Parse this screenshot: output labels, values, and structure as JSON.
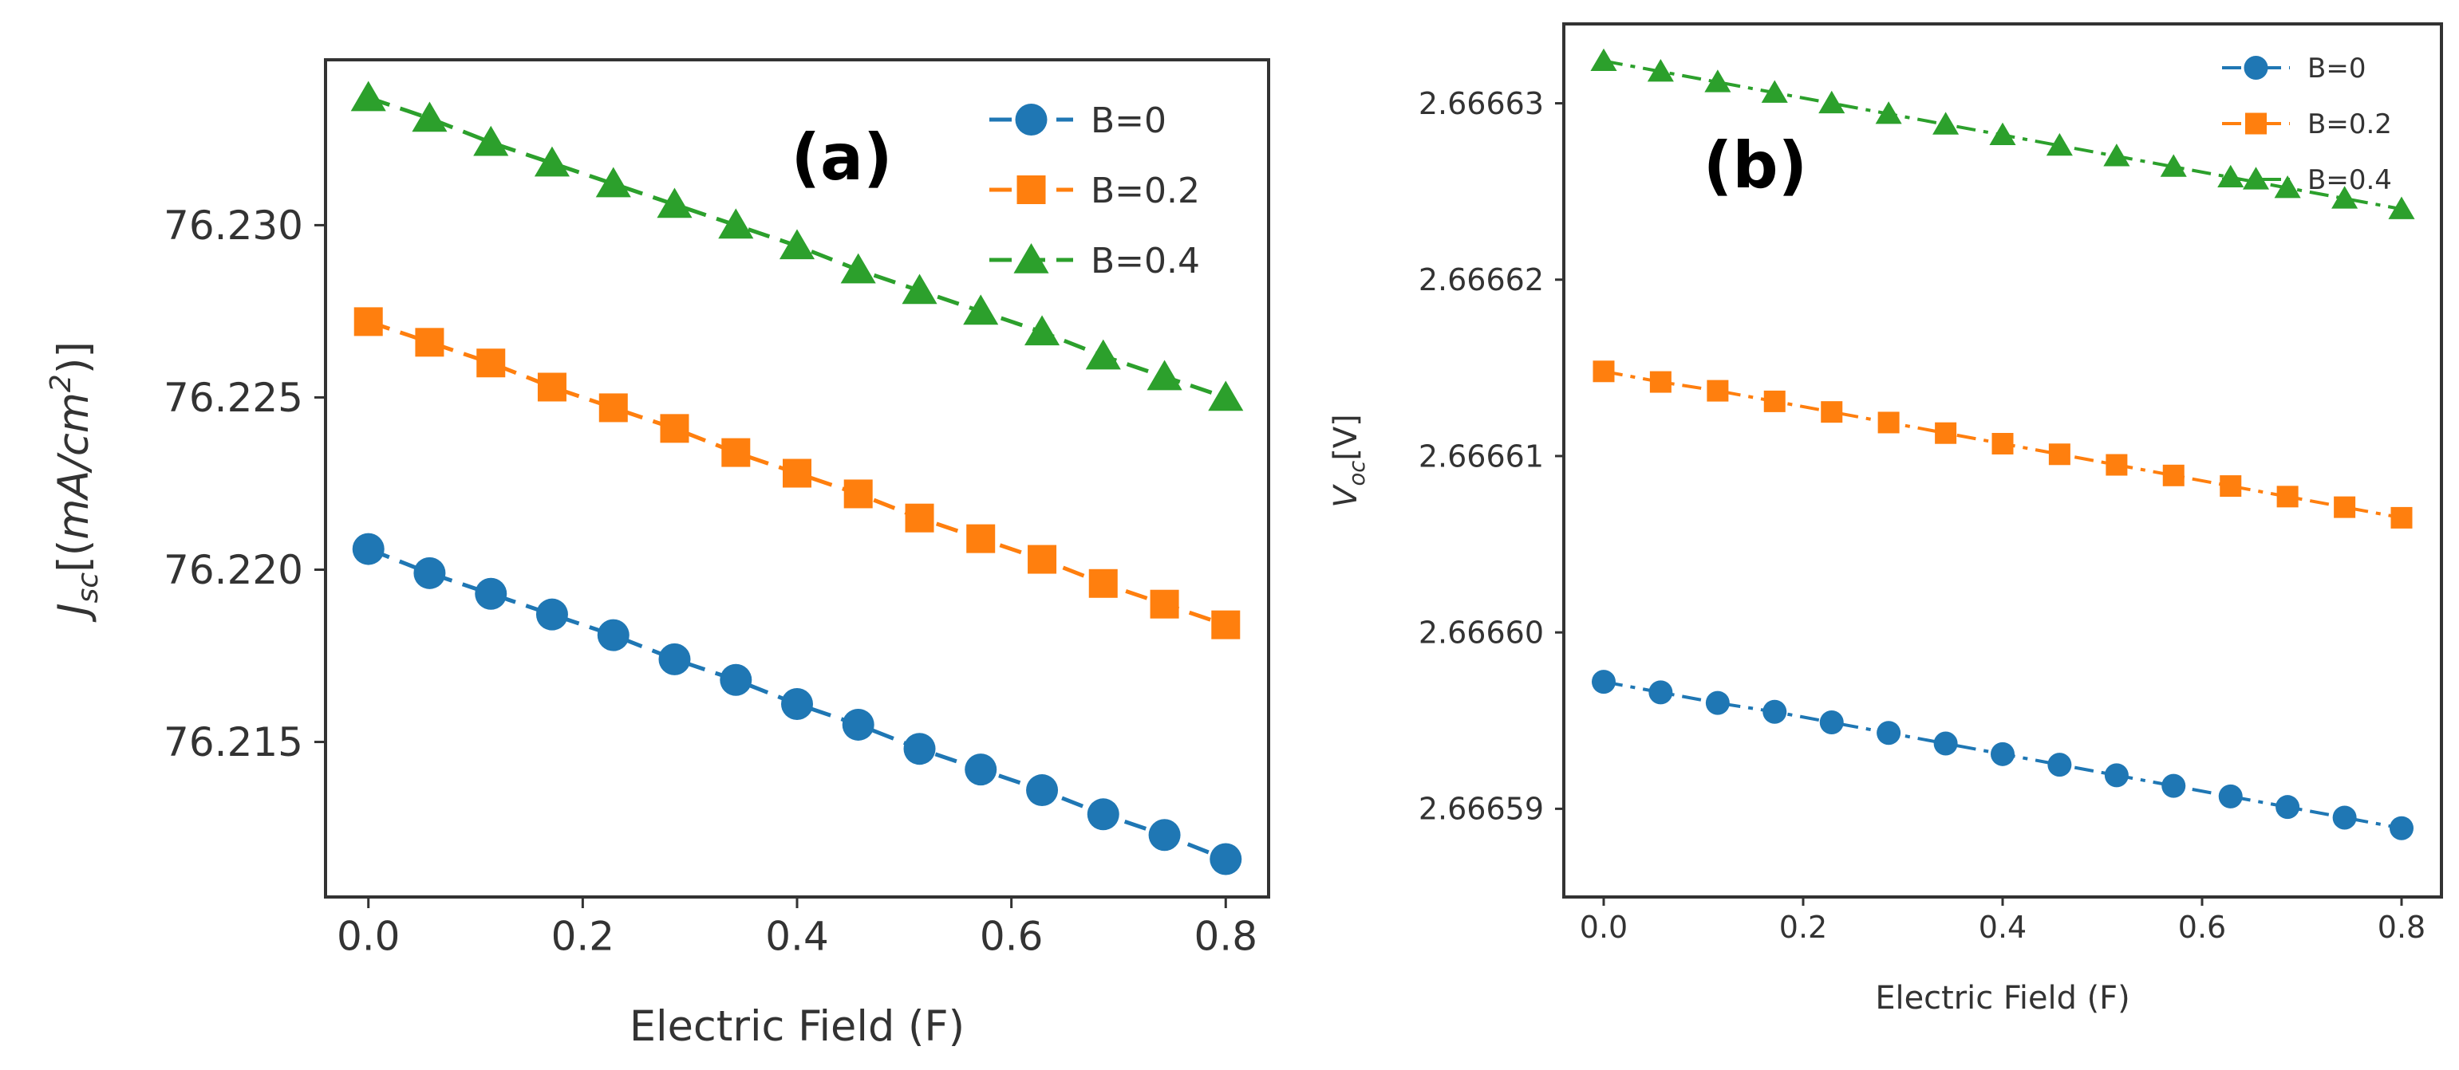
{
  "figure": {
    "panels": [
      "(a)",
      "(b)"
    ]
  },
  "chart_data": [
    {
      "type": "line",
      "panel_label": "(a)",
      "title": "",
      "xlabel": "Electric Field (F)",
      "ylabel": "J_sc [(mA/cm^2)]",
      "ylabel_parts": {
        "J": "J",
        "sub": "sc",
        "pre": "[(",
        "mA": "mA/cm",
        "sup": "2",
        "post": ")]"
      },
      "xlim": [
        -0.04,
        0.84
      ],
      "ylim": [
        76.2105,
        76.2348
      ],
      "xticks": [
        0.0,
        0.2,
        0.4,
        0.6,
        0.8
      ],
      "xtick_labels": [
        "0.0",
        "0.2",
        "0.4",
        "0.6",
        "0.8"
      ],
      "yticks": [
        76.215,
        76.22,
        76.225,
        76.23
      ],
      "ytick_labels": [
        "76.215",
        "76.220",
        "76.225",
        "76.230"
      ],
      "x": [
        0.0,
        0.0571,
        0.1143,
        0.1714,
        0.2286,
        0.2857,
        0.3429,
        0.4,
        0.4571,
        0.5143,
        0.5714,
        0.6286,
        0.6857,
        0.7429,
        0.8
      ],
      "legend_position": "top-right",
      "series": [
        {
          "name": "B=0",
          "color": "#1f77b4",
          "marker": "circle",
          "linestyle": "dashed",
          "values": [
            76.2206,
            76.2199,
            76.2193,
            76.2187,
            76.2181,
            76.2174,
            76.2168,
            76.2161,
            76.2155,
            76.2148,
            76.2142,
            76.2136,
            76.2129,
            76.2123,
            76.2116
          ]
        },
        {
          "name": "B=0.2",
          "color": "#ff7f0e",
          "marker": "square",
          "linestyle": "dashed",
          "values": [
            76.2272,
            76.2266,
            76.226,
            76.2253,
            76.2247,
            76.2241,
            76.2234,
            76.2228,
            76.2222,
            76.2215,
            76.2209,
            76.2203,
            76.2196,
            76.219,
            76.2184
          ]
        },
        {
          "name": "B=0.4",
          "color": "#2ca02c",
          "marker": "triangle",
          "linestyle": "dashed",
          "values": [
            76.2337,
            76.2331,
            76.2324,
            76.2318,
            76.2312,
            76.2306,
            76.23,
            76.2294,
            76.2287,
            76.2281,
            76.2275,
            76.2269,
            76.2262,
            76.2256,
            76.225
          ]
        }
      ]
    },
    {
      "type": "line",
      "panel_label": "(b)",
      "title": "",
      "xlabel": "Electric Field (F)",
      "ylabel": "V_oc[V]",
      "ylabel_parts": {
        "V": "V",
        "sub": "oc",
        "post": "[V]"
      },
      "xlim": [
        -0.04,
        0.84
      ],
      "ylim": [
        2.666585,
        2.6666345
      ],
      "xticks": [
        0.0,
        0.2,
        0.4,
        0.6,
        0.8
      ],
      "xtick_labels": [
        "0.0",
        "0.2",
        "0.4",
        "0.6",
        "0.8"
      ],
      "yticks": [
        2.66659,
        2.6666,
        2.66661,
        2.66662,
        2.66663
      ],
      "ytick_labels": [
        "2.66659",
        "2.66660",
        "2.66661",
        "2.66662",
        "2.66663"
      ],
      "x": [
        0.0,
        0.0571,
        0.1143,
        0.1714,
        0.2286,
        0.2857,
        0.3429,
        0.4,
        0.4571,
        0.5143,
        0.5714,
        0.6286,
        0.6857,
        0.7429,
        0.8
      ],
      "legend_position": "top-right",
      "series": [
        {
          "name": "B=0",
          "color": "#1f77b4",
          "marker": "circle",
          "linestyle": "dashdot",
          "values": [
            2.6665972,
            2.6665966,
            2.666596,
            2.6665955,
            2.6665949,
            2.6665943,
            2.6665937,
            2.6665931,
            2.6665925,
            2.6665919,
            2.6665913,
            2.6665907,
            2.6665901,
            2.6665895,
            2.6665889
          ]
        },
        {
          "name": "B=0.2",
          "color": "#ff7f0e",
          "marker": "square",
          "linestyle": "dashdot",
          "values": [
            2.6666148,
            2.6666142,
            2.6666137,
            2.6666131,
            2.6666125,
            2.6666119,
            2.6666113,
            2.6666107,
            2.6666101,
            2.6666095,
            2.6666089,
            2.6666083,
            2.6666077,
            2.6666071,
            2.6666065
          ]
        },
        {
          "name": "B=0.4",
          "color": "#2ca02c",
          "marker": "triangle",
          "linestyle": "dashdot",
          "values": [
            2.6666324,
            2.6666318,
            2.6666312,
            2.6666306,
            2.66663,
            2.6666294,
            2.6666288,
            2.6666282,
            2.6666276,
            2.666627,
            2.6666264,
            2.6666258,
            2.6666252,
            2.6666246,
            2.666624
          ]
        }
      ]
    }
  ]
}
